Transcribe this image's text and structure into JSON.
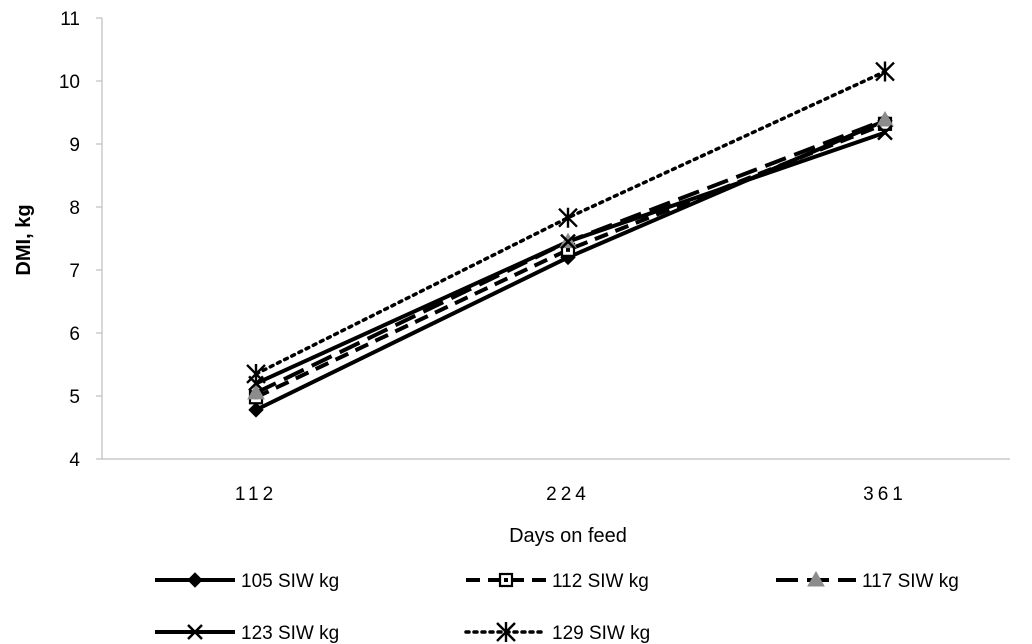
{
  "chart_data": {
    "type": "line",
    "title": "",
    "xlabel": "Days on feed",
    "ylabel": "DMI, kg",
    "categories": [
      "112",
      "224",
      "361"
    ],
    "ylim": [
      4,
      11
    ],
    "y_ticks": [
      4,
      5,
      6,
      7,
      8,
      9,
      10,
      11
    ],
    "grid": false,
    "legend_position": "bottom",
    "series": [
      {
        "name": "105 SIW kg",
        "values": [
          4.78,
          7.2,
          9.37
        ],
        "marker": "diamond",
        "line": "solid",
        "color": "#000000",
        "marker_color": "#000000"
      },
      {
        "name": "112 SIW kg",
        "values": [
          4.98,
          7.32,
          9.32
        ],
        "marker": "square-dot",
        "line": "dash",
        "color": "#000000",
        "marker_color": "#000000"
      },
      {
        "name": "117 SIW kg",
        "values": [
          5.05,
          7.45,
          9.38
        ],
        "marker": "triangle",
        "line": "long-dash",
        "color": "#000000",
        "marker_color": "#8c8c8c"
      },
      {
        "name": "123 SIW kg",
        "values": [
          5.2,
          7.45,
          9.18
        ],
        "marker": "x",
        "line": "solid",
        "color": "#000000",
        "marker_color": "#000000"
      },
      {
        "name": "129 SIW kg",
        "values": [
          5.35,
          7.83,
          10.15
        ],
        "marker": "star",
        "line": "dot",
        "color": "#000000",
        "marker_color": "#000000"
      }
    ]
  }
}
